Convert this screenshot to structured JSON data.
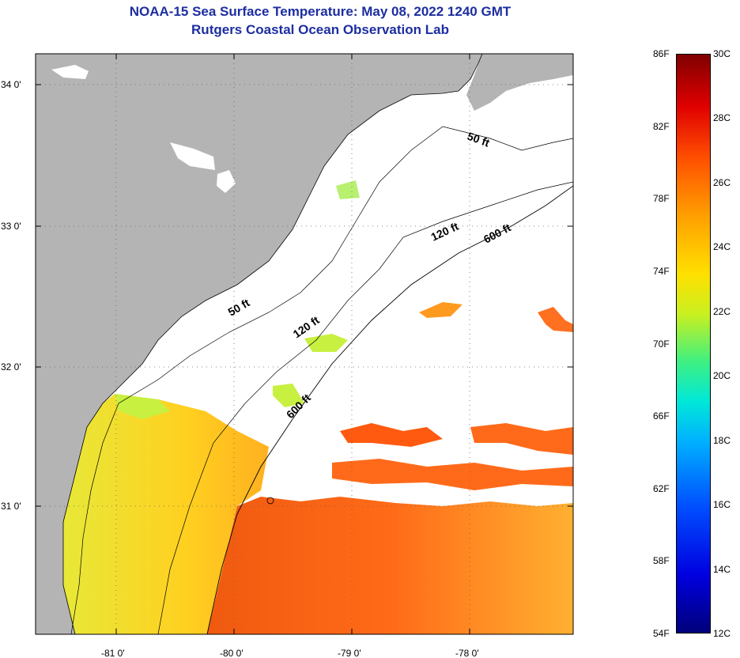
{
  "header": {
    "title": "NOAA-15 Sea Surface Temperature:  May 08, 2022 1240 GMT",
    "subtitle": "Rutgers Coastal Ocean Observation Lab"
  },
  "axes": {
    "lat_labels": [
      "34 0'",
      "33 0'",
      "32 0'",
      "31 0'"
    ],
    "lon_labels": [
      "-81 0'",
      "-80 0'",
      "-79 0'",
      "-78 0'"
    ]
  },
  "contours": {
    "c50a": "50 ft",
    "c50b": "50 ft",
    "c120a": "120 ft",
    "c120b": "120 ft",
    "c600a": "600 ft",
    "c600b": "600 ft"
  },
  "colorbar": {
    "fahrenheit": [
      "86F",
      "82F",
      "78F",
      "74F",
      "70F",
      "66F",
      "62F",
      "58F",
      "54F"
    ],
    "celsius": [
      "30C",
      "28C",
      "26C",
      "24C",
      "22C",
      "20C",
      "18C",
      "16C",
      "14C",
      "12C"
    ],
    "range_f": [
      54,
      86
    ],
    "range_c": [
      12,
      30
    ]
  },
  "colors": {
    "land": "#b4b4b4",
    "cloud": "#ffffff",
    "title": "#1d2ea0"
  }
}
